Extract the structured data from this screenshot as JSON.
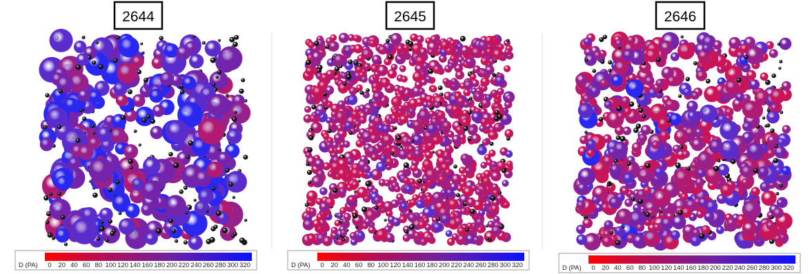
{
  "panels": [
    {
      "title": "2644",
      "colorbar": {
        "label": "D (PA)",
        "ticks": [
          0,
          20,
          40,
          60,
          80,
          100,
          120,
          140,
          160,
          180,
          200,
          220,
          240,
          260,
          280,
          300,
          320
        ]
      }
    },
    {
      "title": "2645",
      "colorbar": {
        "label": "D (PA)",
        "ticks": [
          0,
          20,
          40,
          60,
          80,
          100,
          120,
          140,
          160,
          180,
          200,
          220,
          240,
          260,
          280,
          300,
          320
        ]
      }
    },
    {
      "title": "2646",
      "colorbar": {
        "label": "D (PA)",
        "ticks": [
          0,
          20,
          40,
          60,
          80,
          100,
          120,
          140,
          160,
          180,
          200,
          220,
          240,
          260,
          280,
          300,
          320
        ]
      }
    }
  ]
}
